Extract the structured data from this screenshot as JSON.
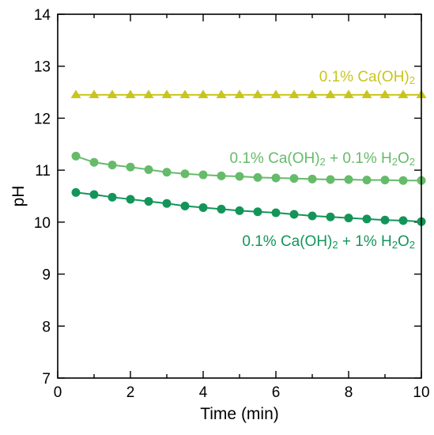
{
  "chart_data": {
    "type": "line",
    "xlabel": "Time (min)",
    "ylabel": "pH",
    "xlim": [
      0,
      10
    ],
    "ylim": [
      7,
      14
    ],
    "x_ticks": [
      0,
      2,
      4,
      6,
      8,
      10
    ],
    "y_ticks": [
      7,
      8,
      9,
      10,
      11,
      12,
      13,
      14
    ],
    "grid": false,
    "legend": "inline labels",
    "x": [
      0.5,
      1,
      1.5,
      2,
      2.5,
      3,
      3.5,
      4,
      4.5,
      5,
      5.5,
      6,
      6.5,
      7,
      7.5,
      8,
      8.5,
      9,
      9.5,
      10
    ],
    "series": [
      {
        "name": "0.1% Ca(OH)2",
        "label_parts": [
          {
            "t": "0.1% Ca(OH)",
            "sub": false
          },
          {
            "t": "2",
            "sub": true
          }
        ],
        "color": "#c9c41e",
        "marker": "triangle",
        "values": [
          12.45,
          12.45,
          12.45,
          12.45,
          12.45,
          12.45,
          12.45,
          12.45,
          12.45,
          12.45,
          12.45,
          12.45,
          12.45,
          12.45,
          12.45,
          12.45,
          12.45,
          12.45,
          12.45,
          12.45
        ]
      },
      {
        "name": "0.1% Ca(OH)2 + 0.1% H2O2",
        "label_parts": [
          {
            "t": "0.1% Ca(OH)",
            "sub": false
          },
          {
            "t": "2",
            "sub": true
          },
          {
            "t": " + 0.1% H",
            "sub": false
          },
          {
            "t": "2",
            "sub": true
          },
          {
            "t": "O",
            "sub": false
          },
          {
            "t": "2",
            "sub": true
          }
        ],
        "color": "#66bb6a",
        "marker": "circle",
        "values": [
          11.27,
          11.15,
          11.1,
          11.06,
          11.01,
          10.96,
          10.93,
          10.91,
          10.89,
          10.88,
          10.86,
          10.85,
          10.84,
          10.83,
          10.82,
          10.82,
          10.81,
          10.81,
          10.8,
          10.8
        ]
      },
      {
        "name": "0.1% Ca(OH)2 + 1% H2O2",
        "label_parts": [
          {
            "t": "0.1% Ca(OH)",
            "sub": false
          },
          {
            "t": "2",
            "sub": true
          },
          {
            "t": " + 1% H",
            "sub": false
          },
          {
            "t": "2",
            "sub": true
          },
          {
            "t": "O",
            "sub": false
          },
          {
            "t": "2",
            "sub": true
          }
        ],
        "color": "#13955a",
        "marker": "circle",
        "values": [
          10.57,
          10.53,
          10.48,
          10.44,
          10.4,
          10.36,
          10.31,
          10.28,
          10.25,
          10.22,
          10.2,
          10.18,
          10.15,
          10.12,
          10.1,
          10.08,
          10.06,
          10.04,
          10.03,
          10.01
        ]
      }
    ]
  }
}
